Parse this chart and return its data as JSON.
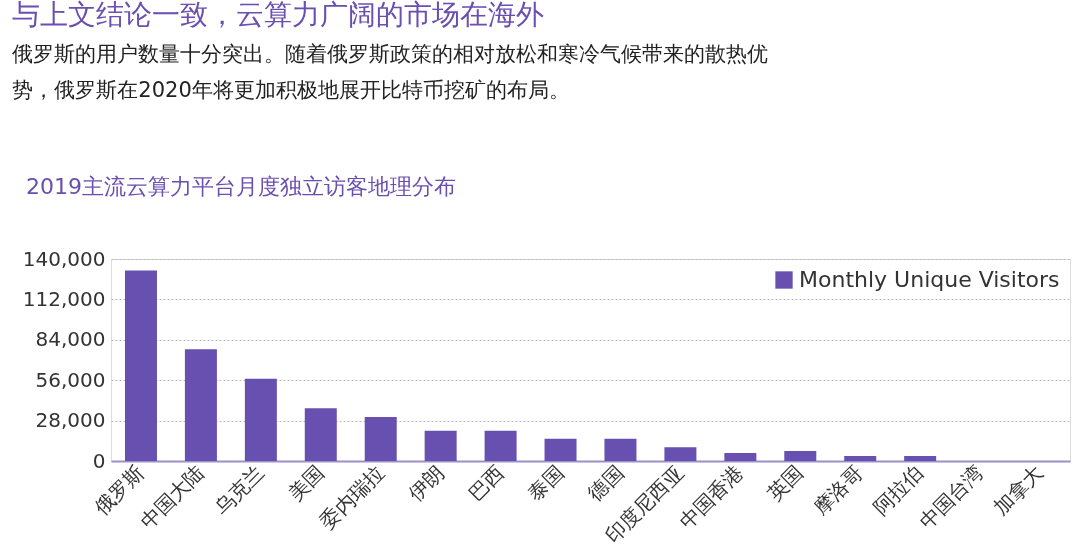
{
  "chart_data": {
    "type": "bar",
    "title": "与上文结论一致，云算力广阔的市场在海外",
    "subtitle": "俄罗斯的用户数量十分突出。随着俄罗斯政策的相对放松和寒冷气候带来的散热优势，俄罗斯在2020年将更加积极地展开比特币挖矿的布局。",
    "annotations": [
      "2019主流云算力平台月度独立访客地理分布"
    ],
    "categories": [
      "俄罗斯",
      "中国大陆",
      "乌克兰",
      "美国",
      "委内瑞拉",
      "伊朗",
      "巴西",
      "泰国",
      "德国",
      "印度尼西亚",
      "中国香港",
      "英国",
      "摩洛哥",
      "阿拉伯",
      "中国台湾",
      "加拿大"
    ],
    "series": [
      {
        "name": "Monthly Unique Visitors",
        "color": "#6750b0",
        "values": [
          132000,
          77500,
          57000,
          36500,
          30500,
          21000,
          21000,
          15500,
          15500,
          9500,
          5500,
          7000,
          3500,
          3500,
          0,
          0
        ]
      }
    ],
    "ylim": [
      0,
      140000
    ],
    "yticks": [
      0,
      {
        "value": 28000,
        "label": "28,000"
      },
      {
        "value": 56000,
        "label": "56,000"
      },
      {
        "value": 84000,
        "label": "84,000"
      },
      {
        "value": 112000,
        "label": "112,000"
      },
      {
        "value": 140000,
        "label": "140,000"
      }
    ],
    "grid": "y",
    "legend": "top right"
  }
}
